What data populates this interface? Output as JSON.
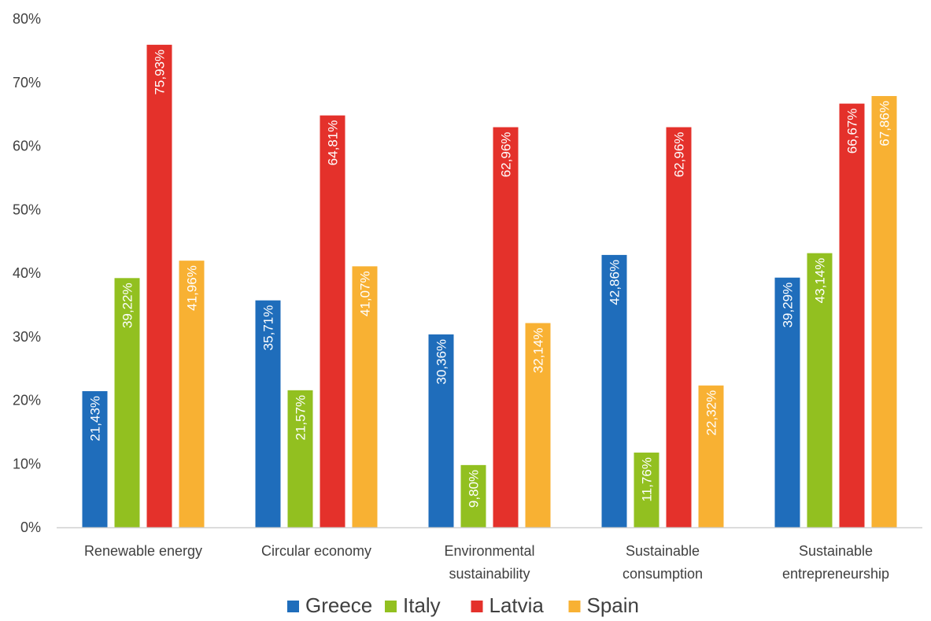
{
  "chart_data": {
    "type": "bar",
    "title": "",
    "xlabel": "",
    "ylabel": "",
    "ylim": [
      0,
      80
    ],
    "y_ticks": [
      0,
      10,
      20,
      30,
      40,
      50,
      60,
      70,
      80
    ],
    "y_tick_labels": [
      "0%",
      "10%",
      "20%",
      "30%",
      "40%",
      "50%",
      "60%",
      "70%",
      "80%"
    ],
    "grid": false,
    "legend_position": "bottom",
    "categories": [
      [
        "Renewable energy"
      ],
      [
        "Circular economy"
      ],
      [
        "Environmental",
        "sustainability"
      ],
      [
        "Sustainable",
        "consumption"
      ],
      [
        "Sustainable",
        "entrepreneurship"
      ]
    ],
    "series": [
      {
        "name": "Greece",
        "color": "#1f6dbb",
        "values": [
          21.43,
          35.71,
          30.36,
          42.86,
          39.29
        ],
        "labels": [
          "21,43%",
          "35,71%",
          "30,36%",
          "42,86%",
          "39,29%"
        ]
      },
      {
        "name": "Italy",
        "color": "#92c020",
        "values": [
          39.22,
          21.57,
          9.8,
          11.76,
          43.14
        ],
        "labels": [
          "39,22%",
          "21,57%",
          "9,80%",
          "11,76%",
          "43,14%"
        ]
      },
      {
        "name": "Latvia",
        "color": "#e4312b",
        "values": [
          75.93,
          64.81,
          62.96,
          62.96,
          66.67
        ],
        "labels": [
          "75,93%",
          "64,81%",
          "62,96%",
          "62,96%",
          "66,67%"
        ]
      },
      {
        "name": "Spain",
        "color": "#f8b133",
        "values": [
          41.96,
          41.07,
          32.14,
          22.32,
          67.86
        ],
        "labels": [
          "41,96%",
          "41,07%",
          "32,14%",
          "22,32%",
          "67,86%"
        ]
      }
    ]
  }
}
